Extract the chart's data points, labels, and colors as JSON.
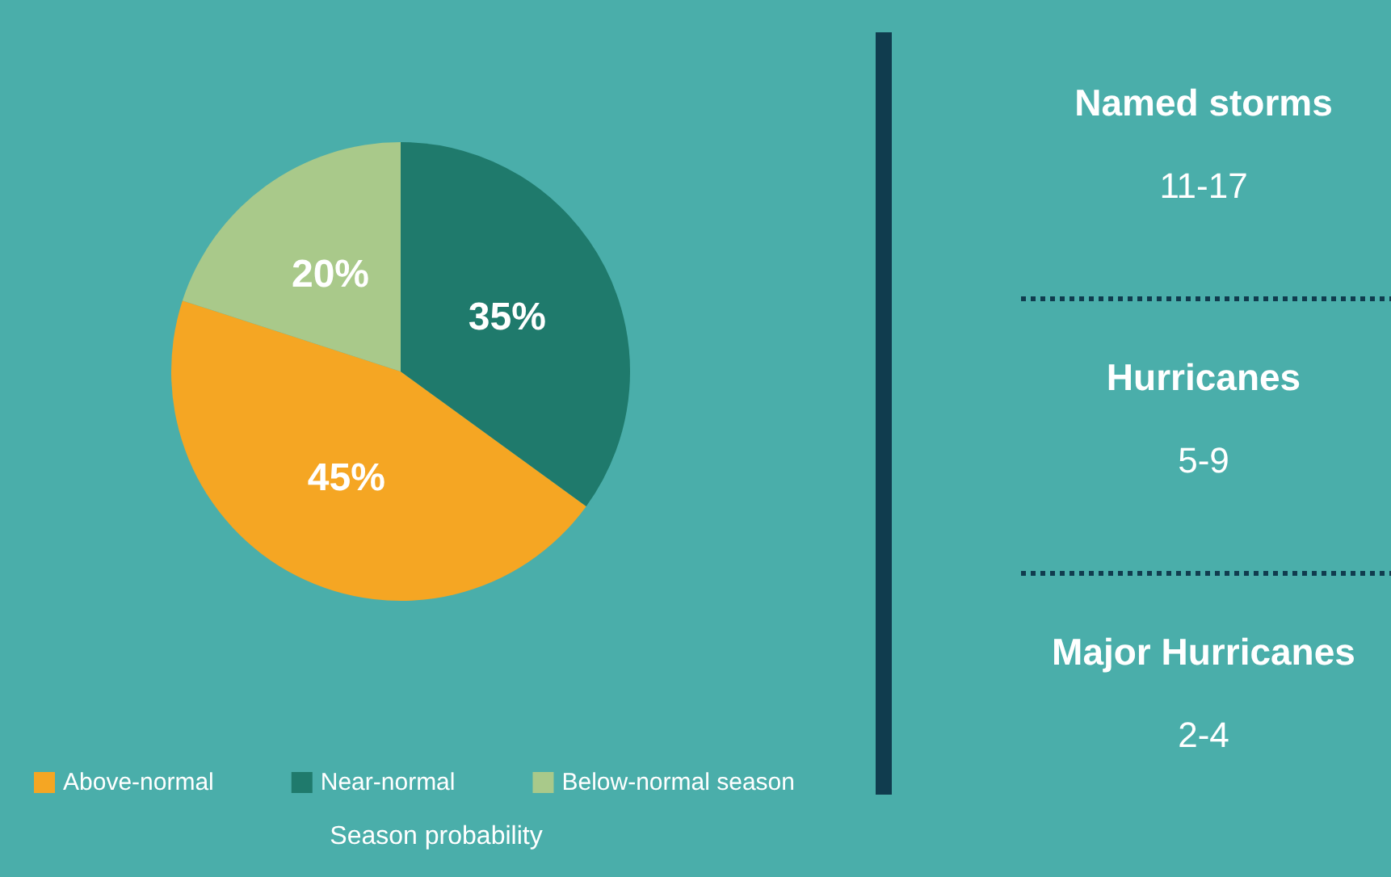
{
  "chart_data": [
    {
      "type": "pie",
      "categories": [
        "Above-normal",
        "Near-normal",
        "Below-normal season"
      ],
      "values": [
        45,
        35,
        20
      ],
      "colors": [
        "#f5a623",
        "#1f7a6c",
        "#a9c98a"
      ],
      "value_labels": [
        "45%",
        "35%",
        "20%"
      ],
      "legend": "bottom",
      "annotations": [
        "Season probability"
      ]
    },
    {
      "type": "other",
      "annotations": [
        "Named storms",
        "11-17",
        "Hurricanes",
        "5-9",
        "Major Hurricanes",
        "2-4"
      ]
    }
  ]
}
